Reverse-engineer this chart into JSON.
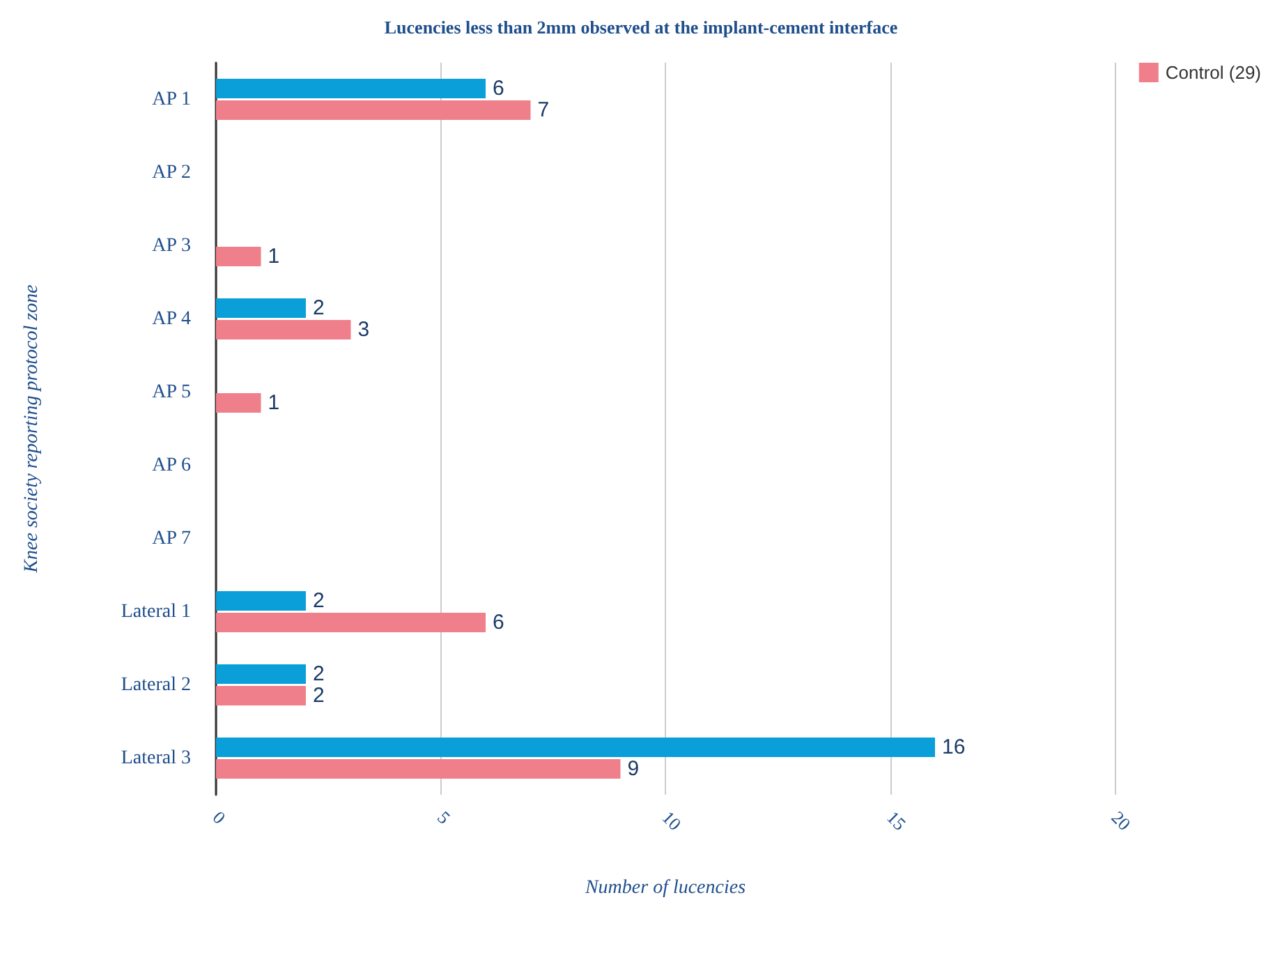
{
  "chart_data": {
    "type": "bar",
    "orientation": "horizontal",
    "title": "Lucencies less than 2mm observed at the implant-cement interface",
    "xlabel": "Number of lucencies",
    "ylabel": "Knee society reporting protocol zone",
    "categories": [
      "AP 1",
      "AP 2",
      "AP 3",
      "AP 4",
      "AP 5",
      "AP 6",
      "AP 7",
      "Lateral 1",
      "Lateral 2",
      "Lateral 3"
    ],
    "series": [
      {
        "color": "#0a9fd8",
        "values": [
          6,
          null,
          null,
          2,
          null,
          null,
          null,
          2,
          2,
          16
        ]
      },
      {
        "name": "Control (29)",
        "color": "#ef7f8b",
        "values": [
          7,
          null,
          1,
          3,
          1,
          null,
          null,
          6,
          2,
          9
        ]
      }
    ],
    "xlim": [
      0,
      20
    ],
    "xticks": [
      0,
      5,
      10,
      15,
      20
    ],
    "grid": "x",
    "legend": "top right",
    "data_labels": true
  }
}
